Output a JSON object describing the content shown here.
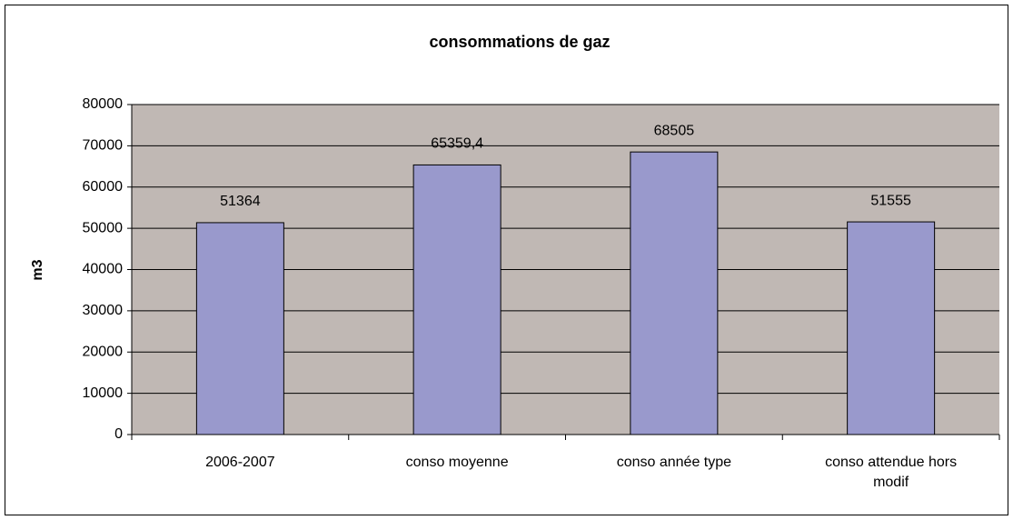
{
  "chart_data": {
    "type": "bar",
    "title": "consommations de gaz",
    "y_label": "m3",
    "categories": [
      "2006-2007",
      "conso moyenne",
      "conso année type",
      "conso attendue hors modif"
    ],
    "values": [
      51364,
      65359.4,
      68505,
      51555
    ],
    "value_labels": [
      "51364",
      "65359,4",
      "68505",
      "51555"
    ],
    "color": "#9999cc",
    "plot_background": "#c0b8b4",
    "ylim": [
      0,
      80000
    ],
    "yticks": [
      0,
      10000,
      20000,
      30000,
      40000,
      50000,
      60000,
      70000,
      80000
    ],
    "grid": true
  }
}
